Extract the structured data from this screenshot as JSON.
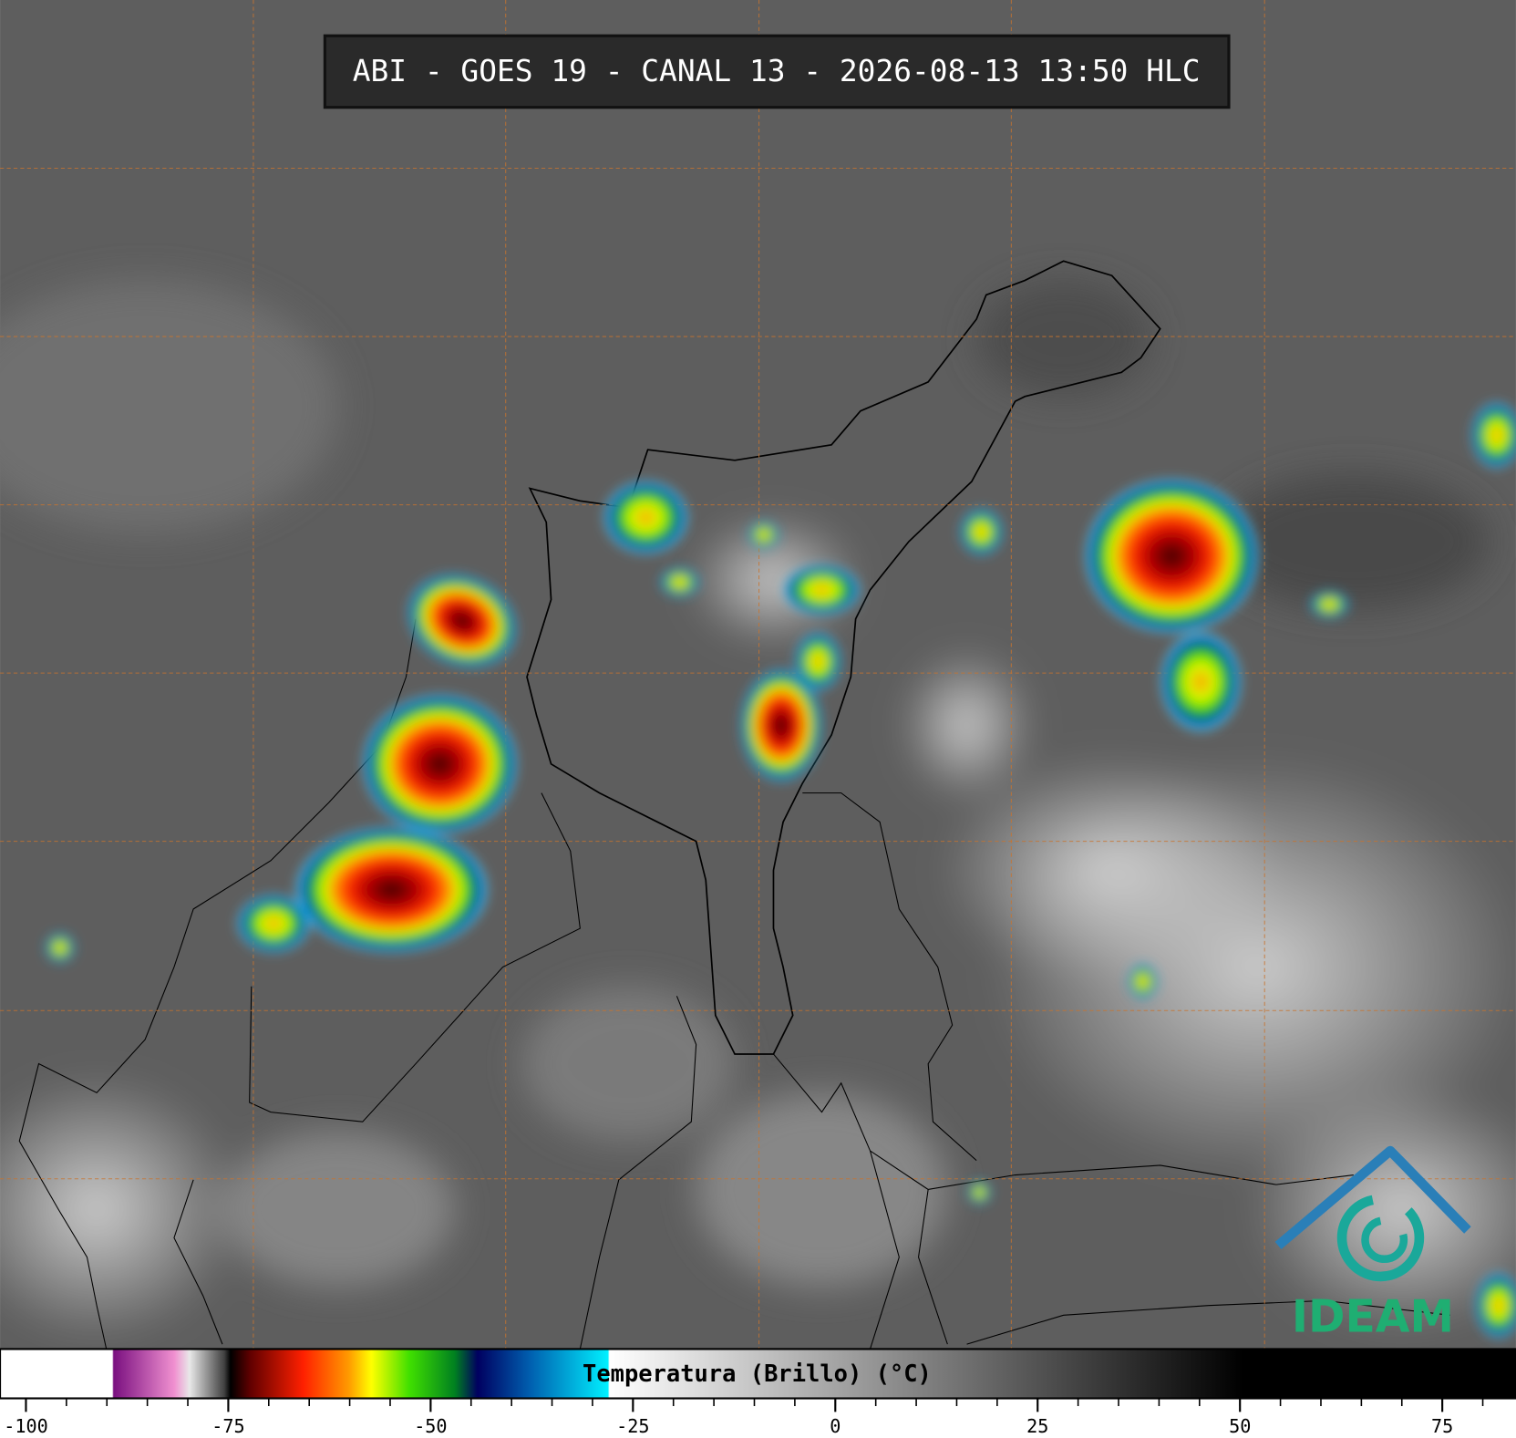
{
  "header": {
    "title": "ABI - GOES 19 - CANAL 13 - 2026-08-13 13:50 HLC"
  },
  "colorbar": {
    "label": "Temperatura (Brillo) (°C)",
    "range": [
      -103.2,
      84.1
    ],
    "ticks": [
      -100,
      -75,
      -50,
      -25,
      0,
      25,
      50,
      75
    ]
  },
  "logo": {
    "text": "IDEAM"
  }
}
